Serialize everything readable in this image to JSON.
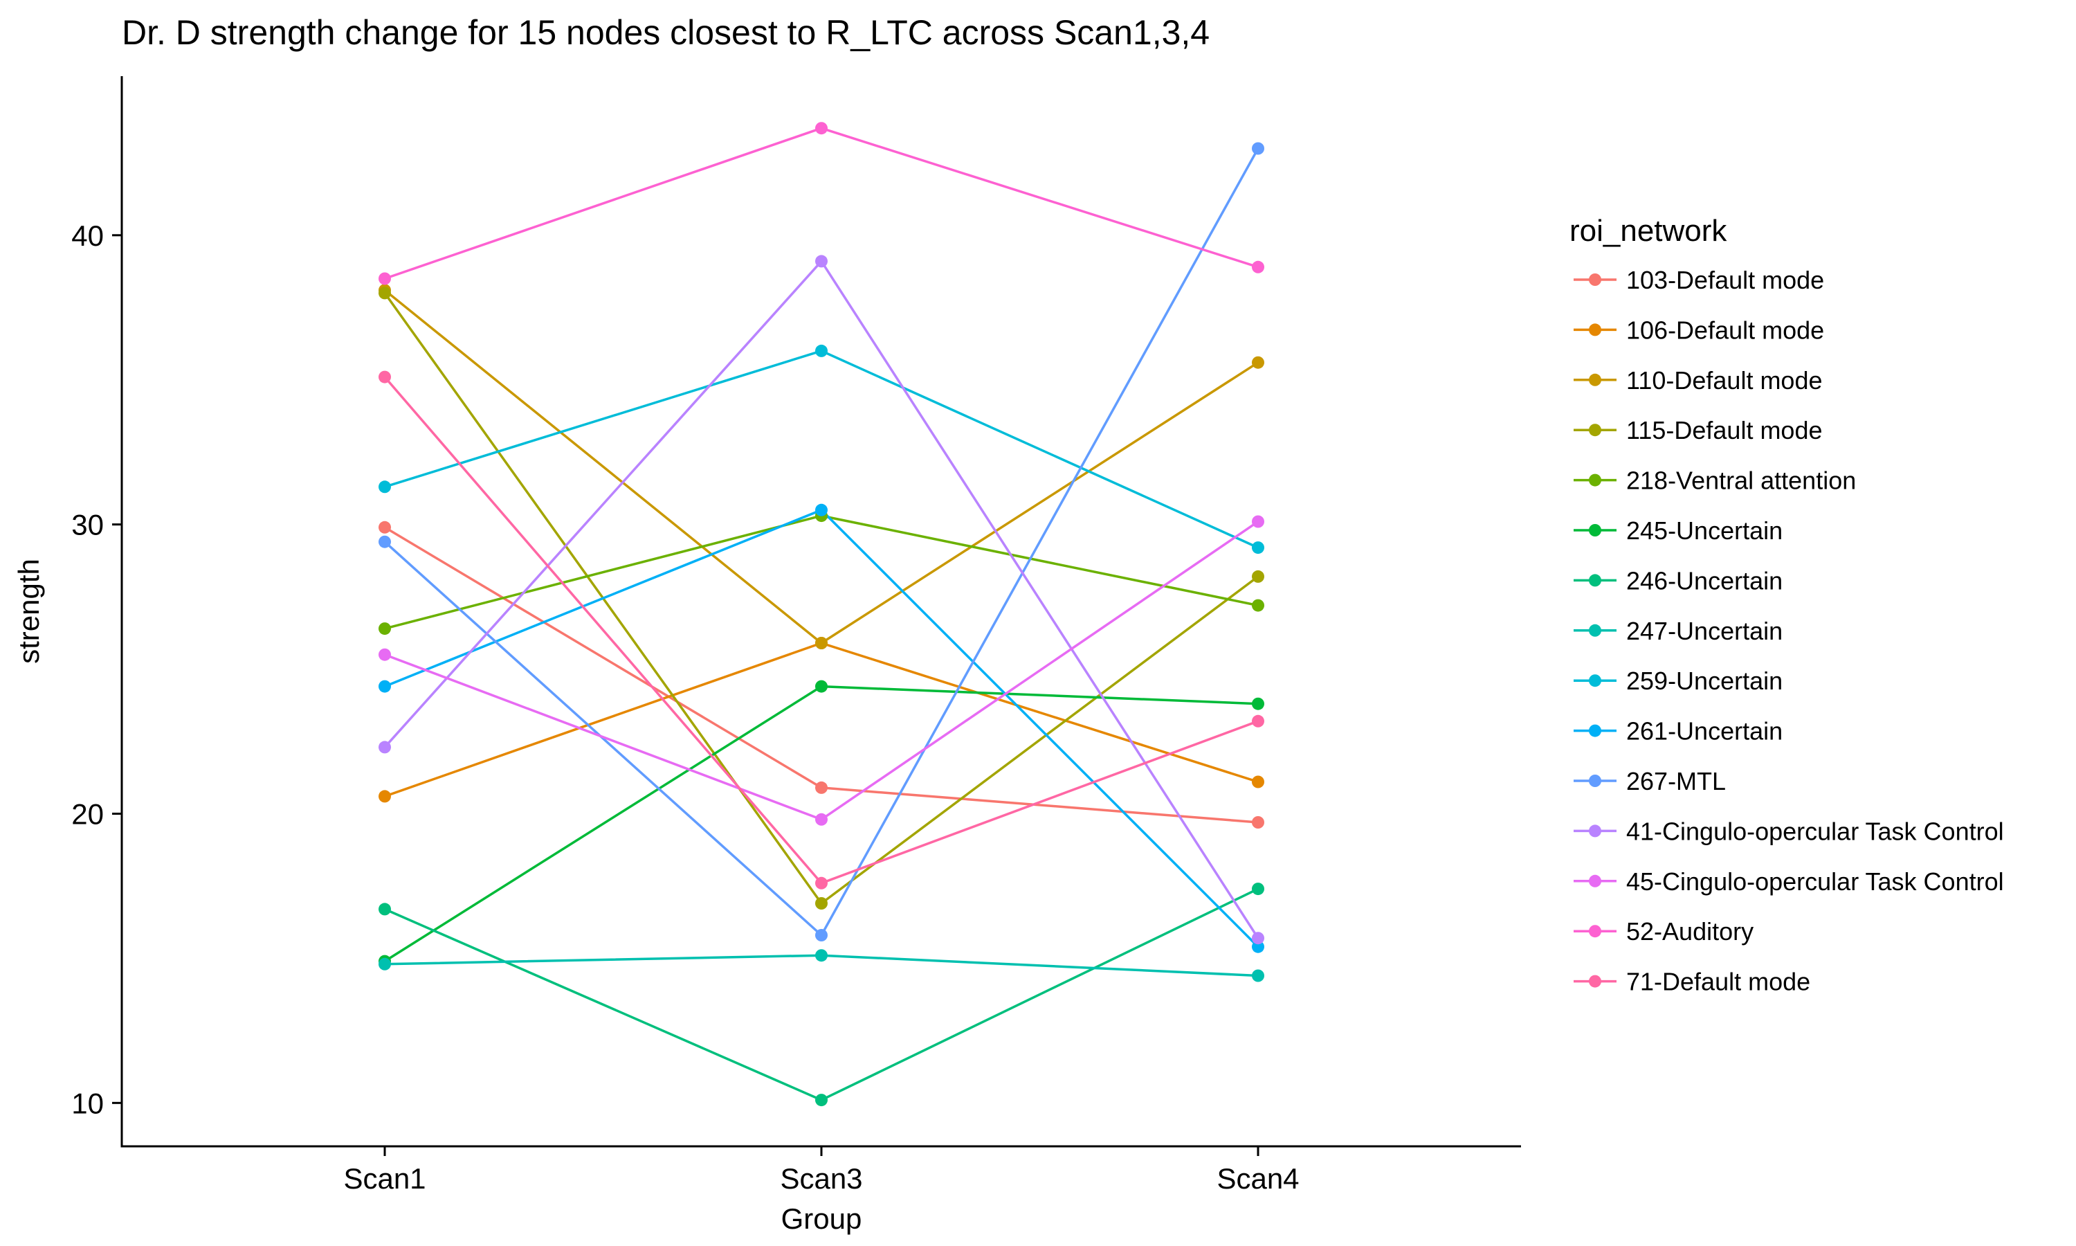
{
  "chart_data": {
    "type": "line",
    "title": "Dr. D strength change for 15 nodes closest to R_LTC across Scan1,3,4",
    "xlabel": "Group",
    "ylabel": "strength",
    "categories": [
      "Scan1",
      "Scan3",
      "Scan4"
    ],
    "ylim": [
      8.5,
      45.5
    ],
    "yticks": [
      10,
      20,
      30,
      40
    ],
    "grid": false,
    "legend": {
      "title": "roi_network",
      "position": "right"
    },
    "series": [
      {
        "name": "103-Default mode",
        "color": "#F8766D",
        "values": [
          29.9,
          20.9,
          19.7
        ]
      },
      {
        "name": "106-Default mode",
        "color": "#E58700",
        "values": [
          20.6,
          25.9,
          21.1
        ]
      },
      {
        "name": "110-Default mode",
        "color": "#C99800",
        "values": [
          38.1,
          25.9,
          35.6
        ]
      },
      {
        "name": "115-Default mode",
        "color": "#A3A500",
        "values": [
          38.0,
          16.9,
          28.2
        ]
      },
      {
        "name": "218-Ventral attention",
        "color": "#6BB100",
        "values": [
          26.4,
          30.3,
          27.2
        ]
      },
      {
        "name": "245-Uncertain",
        "color": "#00BA38",
        "values": [
          14.9,
          24.4,
          23.8
        ]
      },
      {
        "name": "246-Uncertain",
        "color": "#00BF7D",
        "values": [
          16.7,
          10.1,
          17.4
        ]
      },
      {
        "name": "247-Uncertain",
        "color": "#00C0AF",
        "values": [
          14.8,
          15.1,
          14.4
        ]
      },
      {
        "name": "259-Uncertain",
        "color": "#00BCD8",
        "values": [
          31.3,
          36.0,
          29.2
        ]
      },
      {
        "name": "261-Uncertain",
        "color": "#00B0F6",
        "values": [
          24.4,
          30.5,
          15.4
        ]
      },
      {
        "name": "267-MTL",
        "color": "#619CFF",
        "values": [
          29.4,
          15.8,
          43.0
        ]
      },
      {
        "name": "41-Cingulo-opercular Task Control",
        "color": "#B983FF",
        "values": [
          22.3,
          39.1,
          15.7
        ]
      },
      {
        "name": "45-Cingulo-opercular Task Control",
        "color": "#E76BF3",
        "values": [
          25.5,
          19.8,
          30.1
        ]
      },
      {
        "name": "52-Auditory",
        "color": "#FD61D1",
        "values": [
          38.5,
          43.7,
          38.9
        ]
      },
      {
        "name": "71-Default mode",
        "color": "#FF67A4",
        "values": [
          35.1,
          17.6,
          23.2
        ]
      }
    ]
  }
}
